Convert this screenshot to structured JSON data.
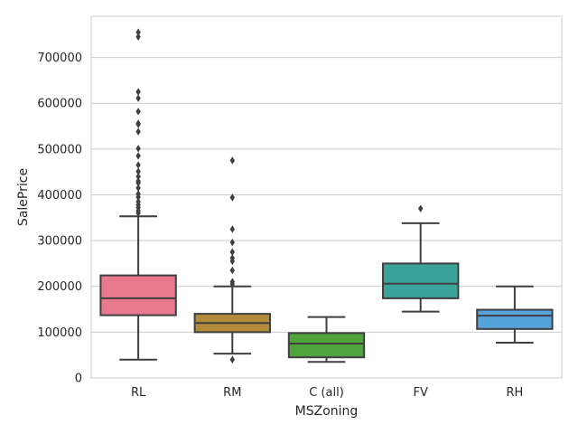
{
  "chart_data": {
    "type": "box",
    "xlabel": "MSZoning",
    "ylabel": "SalePrice",
    "ylim": [
      0,
      790000
    ],
    "yticks": [
      0,
      100000,
      200000,
      300000,
      400000,
      500000,
      600000,
      700000
    ],
    "ytick_labels": [
      "0",
      "100000",
      "200000",
      "300000",
      "400000",
      "500000",
      "600000",
      "700000"
    ],
    "grid": "y",
    "categories": [
      "RL",
      "RM",
      "C (all)",
      "FV",
      "RH"
    ],
    "boxes": [
      {
        "category": "RL",
        "color": "#e8788e",
        "whisker_low": 40000,
        "q1": 137000,
        "median": 174000,
        "q3": 224000,
        "whisker_high": 353000,
        "outliers": [
          755000,
          745000,
          625000,
          611000,
          582000,
          556000,
          554000,
          538000,
          501000,
          485000,
          465000,
          451000,
          440000,
          430000,
          426000,
          415000,
          402000,
          395000,
          385000,
          378000,
          372000,
          365000,
          360000
        ]
      },
      {
        "category": "RM",
        "color": "#b48b3b",
        "whisker_low": 53000,
        "q1": 100000,
        "median": 120000,
        "q3": 140000,
        "whisker_high": 200000,
        "outliers": [
          475000,
          394000,
          325000,
          296000,
          275000,
          262000,
          255000,
          235000,
          210000,
          205000,
          40000
        ]
      },
      {
        "category": "C (all)",
        "color": "#4ea33b",
        "whisker_low": 35000,
        "q1": 45000,
        "median": 75000,
        "q3": 98000,
        "whisker_high": 133000,
        "outliers": []
      },
      {
        "category": "FV",
        "color": "#3aa39a",
        "whisker_low": 145000,
        "q1": 174000,
        "median": 206000,
        "q3": 250000,
        "whisker_high": 338000,
        "outliers": [
          370000
        ]
      },
      {
        "category": "RH",
        "color": "#54a3db",
        "whisker_low": 77000,
        "q1": 107000,
        "median": 136000,
        "q3": 149000,
        "whisker_high": 200000,
        "outliers": []
      }
    ]
  }
}
